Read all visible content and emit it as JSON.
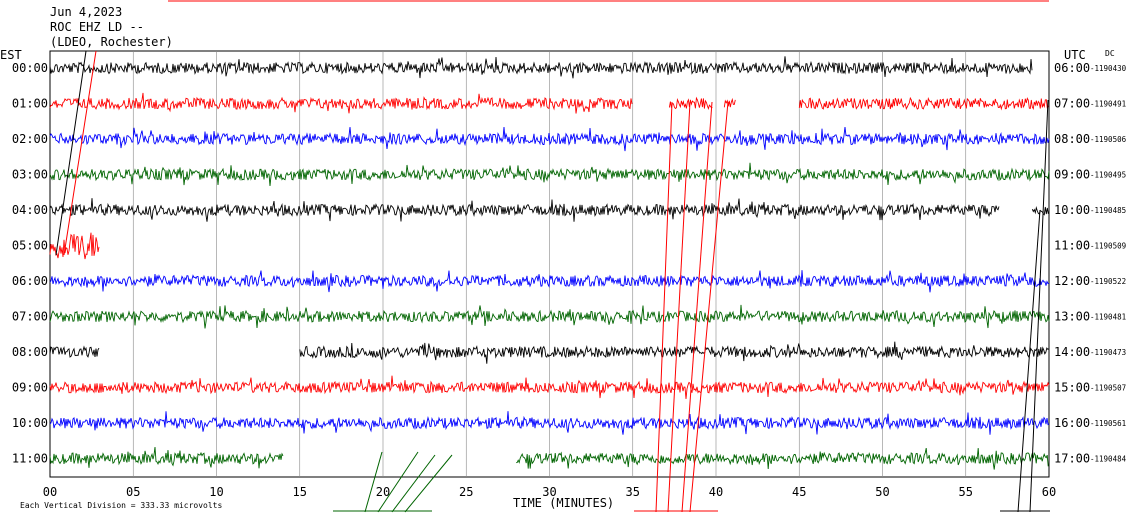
{
  "header": {
    "date": "Jun 4,2023",
    "station": "ROC EHZ LD --",
    "network": "(LDEO, Rochester)"
  },
  "left_axis_title": "EST",
  "right_axis_title": "UTC",
  "dc_label": "DC",
  "footer_note": "Each Vertical Division =  333.33 microvolts",
  "chart_data": {
    "type": "line",
    "title": "",
    "xlabel": "TIME (MINUTES)",
    "xlim": [
      0,
      60
    ],
    "x_ticks": [
      "00",
      "05",
      "10",
      "15",
      "20",
      "25",
      "30",
      "35",
      "40",
      "45",
      "50",
      "55",
      "60"
    ],
    "rows": [
      {
        "est": "00:00",
        "utc": "06:00",
        "dc": "-1190430",
        "color": "#000000",
        "segments": [
          [
            0,
            59
          ]
        ]
      },
      {
        "est": "01:00",
        "utc": "07:00",
        "dc": "-1190491",
        "color": "#ff0000",
        "segments": [
          [
            0,
            35
          ],
          [
            37.2,
            39.8
          ],
          [
            40.5,
            41.2
          ],
          [
            45,
            60
          ]
        ]
      },
      {
        "est": "02:00",
        "utc": "08:00",
        "dc": "-1190506",
        "color": "#0000ff",
        "segments": [
          [
            0,
            60
          ]
        ]
      },
      {
        "est": "03:00",
        "utc": "09:00",
        "dc": "-1190495",
        "color": "#006400",
        "segments": [
          [
            0,
            60
          ]
        ]
      },
      {
        "est": "04:00",
        "utc": "10:00",
        "dc": "-1190485",
        "color": "#000000",
        "segments": [
          [
            0,
            57
          ],
          [
            59,
            60
          ]
        ]
      },
      {
        "est": "05:00",
        "utc": "11:00",
        "dc": "-1190509",
        "color": "#ff0000",
        "segments": [
          [
            0,
            3
          ]
        ]
      },
      {
        "est": "06:00",
        "utc": "12:00",
        "dc": "-1190522",
        "color": "#0000ff",
        "segments": [
          [
            0,
            60
          ]
        ]
      },
      {
        "est": "07:00",
        "utc": "13:00",
        "dc": "-1190481",
        "color": "#006400",
        "segments": [
          [
            0,
            60
          ]
        ]
      },
      {
        "est": "08:00",
        "utc": "14:00",
        "dc": "-1190473",
        "color": "#000000",
        "segments": [
          [
            0,
            3
          ],
          [
            15,
            60
          ]
        ]
      },
      {
        "est": "09:00",
        "utc": "15:00",
        "dc": "-1190507",
        "color": "#ff0000",
        "segments": [
          [
            0,
            60
          ]
        ]
      },
      {
        "est": "10:00",
        "utc": "16:00",
        "dc": "-1190561",
        "color": "#0000ff",
        "segments": [
          [
            0,
            60
          ]
        ]
      },
      {
        "est": "11:00",
        "utc": "17:00",
        "dc": "-1190484",
        "color": "#006400",
        "segments": [
          [
            0,
            14
          ],
          [
            28,
            60
          ]
        ]
      }
    ],
    "grid": true
  }
}
